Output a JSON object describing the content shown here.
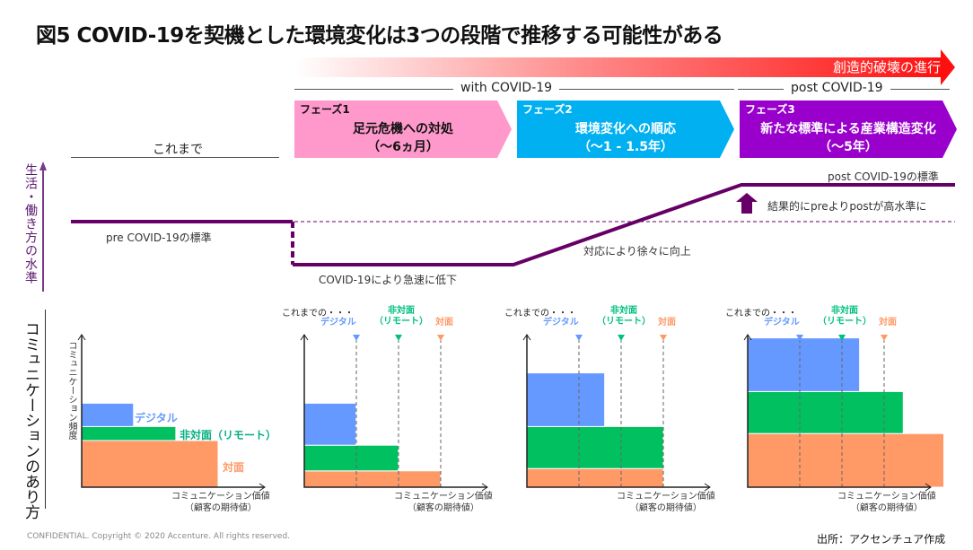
{
  "title": "図5 COVID-19を契機とした環境変化は3つの段階で推移する可能性がある",
  "progress_arrow": {
    "label": "創造的破壊の進行",
    "color": "#ff1010"
  },
  "eras": {
    "before": "これまで",
    "with": "with COVID-19",
    "post": "post COVID-19"
  },
  "phases": [
    {
      "tag": "フェーズ1",
      "name": "足元危機への対処",
      "period": "（～6ヵ月）",
      "color": "#ff99cc",
      "text_color": "#111111"
    },
    {
      "tag": "フェーズ2",
      "name": "環境変化への順応",
      "period": "（～1 - 1.5年）",
      "color": "#00b0f0",
      "text_color": "#ffffff"
    },
    {
      "tag": "フェーズ3",
      "name": "新たな標準による産業構造変化",
      "period": "（～5年）",
      "color": "#9900cc",
      "text_color": "#ffffff"
    }
  ],
  "level_chart": {
    "y_axis_label": "生活・働き方の水準",
    "line_color": "#660066",
    "pre_label": "pre COVID-19の標準",
    "drop_label": "COVID-19により急速に低下",
    "rise_label": "対応により徐々に向上",
    "post_label": "post COVID-19の標準",
    "result_label": "結果的にpreよりpostが高水準に",
    "levels": {
      "pre": 0.5,
      "drop": 0.0,
      "post": 1.0
    }
  },
  "comm_section_label": "コミュニケーションのあり方",
  "chart_data": [
    {
      "type": "bar",
      "title": "これまで",
      "ylabel": "コミュニケーション頻度",
      "xlabel": "コミュニケーション価値",
      "xlabel_sub": "（顧客の期待値）",
      "series": [
        {
          "name": "対面",
          "color": "#ff9966",
          "width": 1.0,
          "height": 1.0
        },
        {
          "name": "非対面（リモート）",
          "color": "#00c060",
          "width": 0.69,
          "height": 0.3
        },
        {
          "name": "デジタル",
          "color": "#6699ff",
          "width": 0.38,
          "height": 0.5
        }
      ],
      "markers": []
    },
    {
      "type": "bar",
      "title": "フェーズ1",
      "ylabel": "",
      "xlabel": "コミュニケーション価値",
      "xlabel_sub": "（顧客の期待値）",
      "markers_title": "これまでの・・・",
      "series": [
        {
          "name": "対面",
          "color": "#ff9966",
          "width": 1.0,
          "height": 0.35
        },
        {
          "name": "非対面（リモート）",
          "color": "#00c060",
          "width": 0.69,
          "height": 0.55
        },
        {
          "name": "デジタル",
          "color": "#6699ff",
          "width": 0.38,
          "height": 0.9
        }
      ],
      "markers": [
        {
          "name": "デジタル",
          "color": "#6699ff",
          "x": 0.38
        },
        {
          "name": "非対面（リモート）",
          "color": "#00c080",
          "x": 0.69
        },
        {
          "name": "対面",
          "color": "#ff9966",
          "x": 1.0
        }
      ]
    },
    {
      "type": "bar",
      "title": "フェーズ2",
      "ylabel": "",
      "xlabel": "コミュニケーション価値",
      "xlabel_sub": "（顧客の期待値）",
      "markers_title": "これまでの・・・",
      "series": [
        {
          "name": "対面",
          "color": "#ff9966",
          "width": 1.0,
          "height": 0.4
        },
        {
          "name": "非対面（リモート）",
          "color": "#00c060",
          "width": 1.0,
          "height": 0.9
        },
        {
          "name": "デジタル",
          "color": "#6699ff",
          "width": 0.57,
          "height": 1.15
        }
      ],
      "markers": [
        {
          "name": "デジタル",
          "color": "#6699ff",
          "x": 0.38
        },
        {
          "name": "非対面（リモート）",
          "color": "#00c080",
          "x": 0.69
        },
        {
          "name": "対面",
          "color": "#ff9966",
          "x": 1.0
        }
      ]
    },
    {
      "type": "bar",
      "title": "フェーズ3",
      "ylabel": "",
      "xlabel": "コミュニケーション価値",
      "xlabel_sub": "（顧客の期待値）",
      "markers_title": "これまでの・・・",
      "series": [
        {
          "name": "対面",
          "color": "#ff9966",
          "width": 1.45,
          "height": 1.15
        },
        {
          "name": "非対面（リモート）",
          "color": "#00c060",
          "width": 1.14,
          "height": 0.9
        },
        {
          "name": "デジタル",
          "color": "#6699ff",
          "width": 0.82,
          "height": 1.15
        }
      ],
      "markers": [
        {
          "name": "デジタル",
          "color": "#6699ff",
          "x": 0.38
        },
        {
          "name": "非対面（リモート）",
          "color": "#00c080",
          "x": 0.69
        },
        {
          "name": "対面",
          "color": "#ff9966",
          "x": 1.0
        }
      ]
    }
  ],
  "footer": {
    "copyright": "CONFIDENTIAL. Copyright © 2020 Accenture. All rights reserved.",
    "source": "出所：アクセンチュア作成"
  }
}
